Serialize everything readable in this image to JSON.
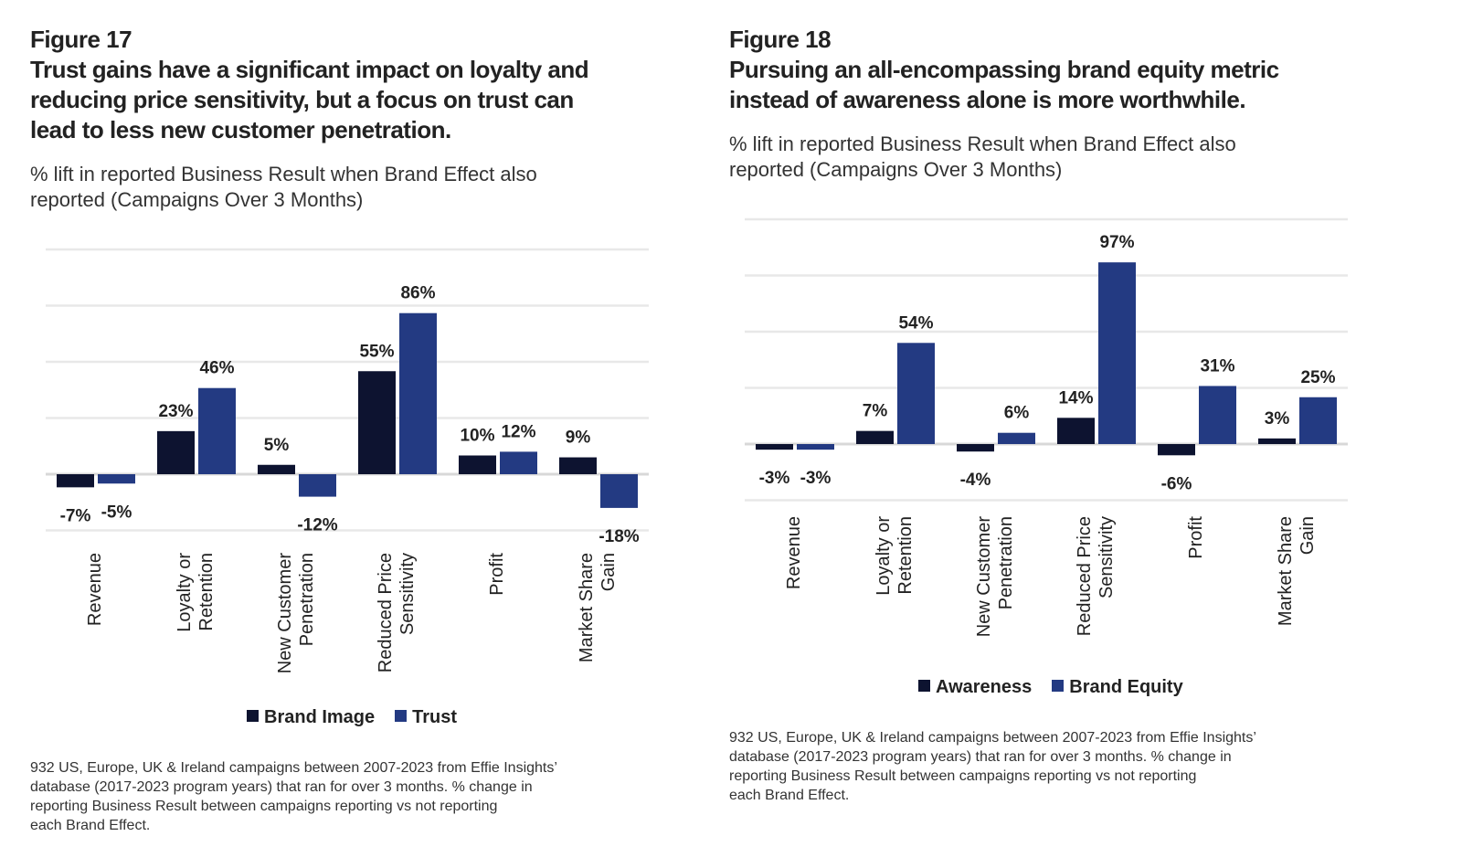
{
  "colors": {
    "dark": "#0d1330",
    "blue": "#233a82",
    "grid": "#e8e8e8",
    "text": "#222222"
  },
  "chart_data": [
    {
      "type": "bar",
      "figure": "Figure 17",
      "title_lines": [
        "Trust gains have a significant impact on loyalty and",
        "reducing price sensitivity, but a focus on trust can",
        "lead to less new customer penetration."
      ],
      "subtitle_lines": [
        "% lift in reported Business Result when Brand Effect also",
        "reported (Campaigns Over 3 Months)"
      ],
      "categories": [
        [
          "Revenue"
        ],
        [
          "Loyalty or",
          "Retention"
        ],
        [
          "New Customer",
          "Penetration"
        ],
        [
          "Reduced Price",
          "Sensitivity"
        ],
        [
          "Profit"
        ],
        [
          "Market Share",
          "Gain"
        ]
      ],
      "series": [
        {
          "name": "Brand Image",
          "values": [
            -7,
            23,
            5,
            55,
            10,
            9
          ],
          "labels": [
            "-7%",
            "23%",
            "5%",
            "55%",
            "10%",
            "9%"
          ]
        },
        {
          "name": "Trust",
          "values": [
            -5,
            46,
            -12,
            86,
            12,
            -18
          ],
          "labels": [
            "-5%",
            "46%",
            "-12%",
            "86%",
            "12%",
            "-18%"
          ]
        }
      ],
      "ylim": [
        -30,
        120
      ],
      "grid": true,
      "legend": "bottom",
      "footnote_lines": [
        "932 US, Europe, UK & Ireland campaigns between 2007-2023 from Effie Insights’",
        "database  (2017-2023 program years) that ran for over 3 months. % change in",
        "reporting Business Result between campaigns reporting vs not reporting",
        "each Brand Effect."
      ]
    },
    {
      "type": "bar",
      "figure": "Figure 18",
      "title_lines": [
        "Pursuing an all-encompassing brand equity metric",
        "instead of awareness alone is more worthwhile."
      ],
      "subtitle_lines": [
        "% lift in reported Business Result when Brand Effect also",
        "reported (Campaigns Over 3 Months)"
      ],
      "categories": [
        [
          "Revenue"
        ],
        [
          "Loyalty or",
          "Retention"
        ],
        [
          "New Customer",
          "Penetration"
        ],
        [
          "Reduced Price",
          "Sensitivity"
        ],
        [
          "Profit"
        ],
        [
          "Market Share",
          "Gain"
        ]
      ],
      "series": [
        {
          "name": "Awareness",
          "values": [
            -3,
            7,
            -4,
            14,
            -6,
            3
          ],
          "labels": [
            "-3%",
            "7%",
            "-4%",
            "14%",
            "-6%",
            "3%"
          ]
        },
        {
          "name": "Brand Equity",
          "values": [
            -3,
            54,
            6,
            97,
            31,
            25
          ],
          "labels": [
            "-3%",
            "54%",
            "6%",
            "97%",
            "31%",
            "25%"
          ]
        }
      ],
      "ylim": [
        -30,
        120
      ],
      "grid": true,
      "legend": "bottom",
      "footnote_lines": [
        "932 US, Europe, UK & Ireland campaigns between 2007-2023 from Effie Insights’",
        "database  (2017-2023 program years) that ran for over 3 months. % change in",
        "reporting Business Result between campaigns reporting vs not reporting",
        "each Brand Effect."
      ]
    }
  ]
}
